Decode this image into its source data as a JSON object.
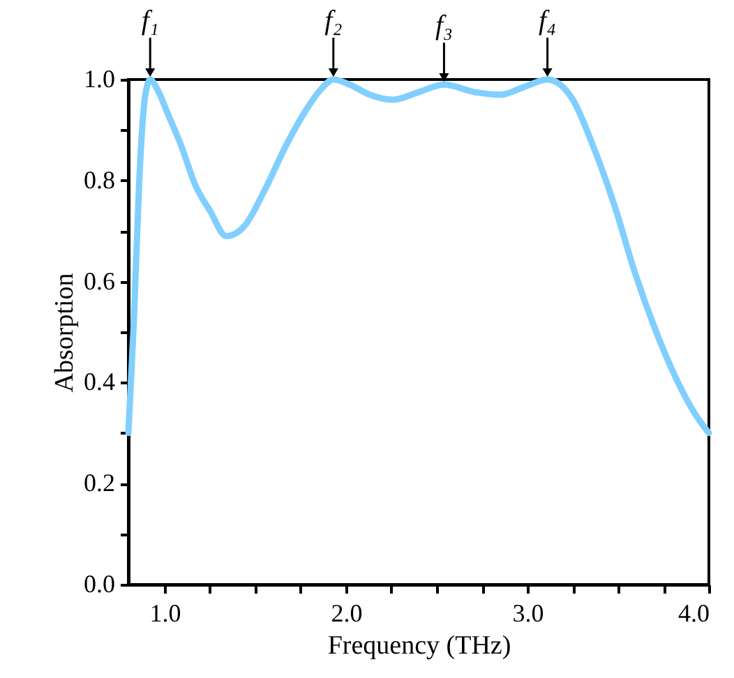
{
  "chart_data": {
    "type": "line",
    "xlabel": "Frequency (THz)",
    "ylabel": "Absorption",
    "x": [
      0.8,
      0.83,
      0.86,
      0.89,
      0.92,
      0.96,
      1.02,
      1.09,
      1.17,
      1.25,
      1.34,
      1.44,
      1.55,
      1.67,
      1.78,
      1.86,
      1.93,
      2.02,
      2.13,
      2.26,
      2.4,
      2.54,
      2.71,
      2.85,
      2.98,
      3.11,
      3.18,
      3.25,
      3.36,
      3.48,
      3.59,
      3.71,
      3.83,
      3.92,
      4.0
    ],
    "series": [
      {
        "color": "#80cfff",
        "values": [
          0.3,
          0.52,
          0.8,
          0.96,
          1.0,
          0.98,
          0.93,
          0.87,
          0.79,
          0.74,
          0.69,
          0.71,
          0.78,
          0.87,
          0.94,
          0.98,
          1.0,
          0.99,
          0.97,
          0.96,
          0.975,
          0.99,
          0.975,
          0.97,
          0.985,
          1.0,
          0.99,
          0.96,
          0.87,
          0.75,
          0.62,
          0.5,
          0.4,
          0.34,
          0.3
        ]
      }
    ],
    "xlim": [
      0.8,
      4.0
    ],
    "xticks": [
      {
        "value": 1.0,
        "label": "1.0"
      },
      {
        "value": 1.25,
        "label": null
      },
      {
        "value": 1.5,
        "label": null
      },
      {
        "value": 1.75,
        "label": null
      },
      {
        "value": 2.0,
        "label": "2.0"
      },
      {
        "value": 2.25,
        "label": null
      },
      {
        "value": 2.5,
        "label": null
      },
      {
        "value": 2.75,
        "label": null
      },
      {
        "value": 3.0,
        "label": "3.0"
      },
      {
        "value": 3.25,
        "label": null
      },
      {
        "value": 3.5,
        "label": null
      },
      {
        "value": 3.75,
        "label": null
      },
      {
        "value": 4.0,
        "label": "4.0"
      }
    ],
    "ylim": [
      0.0,
      1.0
    ],
    "yticks": [
      {
        "value": 0.0,
        "label": "0.0"
      },
      {
        "value": 0.1,
        "label": null
      },
      {
        "value": 0.2,
        "label": "0.2"
      },
      {
        "value": 0.3,
        "label": null
      },
      {
        "value": 0.4,
        "label": "0.4"
      },
      {
        "value": 0.5,
        "label": null
      },
      {
        "value": 0.6,
        "label": "0.6"
      },
      {
        "value": 0.7,
        "label": null
      },
      {
        "value": 0.8,
        "label": "0.8"
      },
      {
        "value": 0.9,
        "label": null
      },
      {
        "value": 1.0,
        "label": "1.0"
      }
    ],
    "annotations": [
      {
        "text": "f₁",
        "x": 0.92,
        "y": 1.0
      },
      {
        "text": "f₂",
        "x": 1.93,
        "y": 1.0
      },
      {
        "text": "f₃",
        "x": 2.54,
        "y": 0.99
      },
      {
        "text": "f₄",
        "x": 3.11,
        "y": 1.0
      }
    ],
    "grid": false,
    "legend": false,
    "marker": "none",
    "line_style": "solid"
  }
}
